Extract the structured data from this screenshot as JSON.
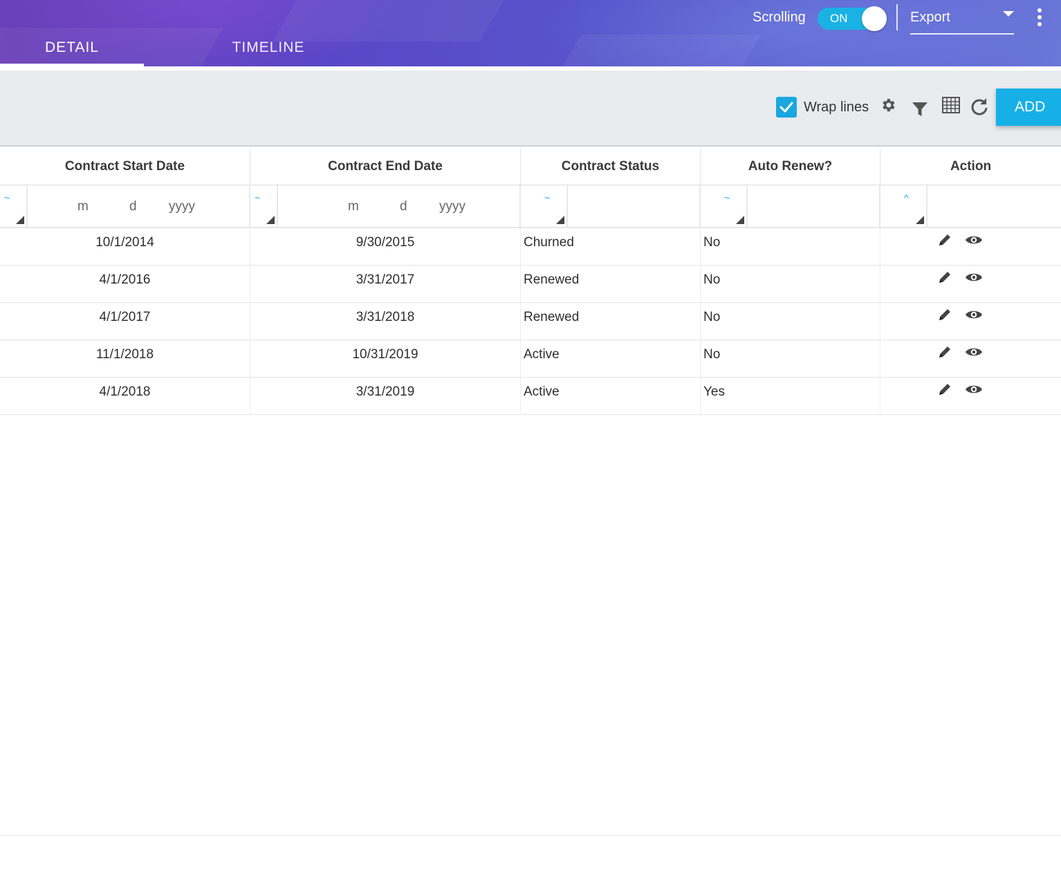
{
  "tabs": [
    {
      "label": "DETAIL",
      "active": true
    },
    {
      "label": "TIMELINE",
      "active": false
    }
  ],
  "header": {
    "scrolling_label": "Scrolling",
    "toggle_state": "ON",
    "export_label": "Export"
  },
  "toolbar": {
    "wrap_label": "Wrap lines",
    "wrap_checked": true,
    "icons": [
      "gear-icon",
      "filter-icon",
      "grid-icon",
      "refresh-icon"
    ],
    "add_label": "ADD"
  },
  "table": {
    "columns": [
      "Contract Start Date",
      "Contract End Date",
      "Contract Status",
      "Auto Renew?",
      "Action"
    ],
    "filters": [
      {
        "operator": "~",
        "placeholder": {
          "m": "m",
          "d": "d",
          "y": "yyyy"
        }
      },
      {
        "operator": "~",
        "placeholder": {
          "m": "m",
          "d": "d",
          "y": "yyyy"
        }
      },
      {
        "operator": "~"
      },
      {
        "operator": "~"
      },
      {
        "operator": "^"
      }
    ],
    "rows": [
      {
        "start": "10/1/2014",
        "end": "9/30/2015",
        "status": "Churned",
        "renew": "No"
      },
      {
        "start": "4/1/2016",
        "end": "3/31/2017",
        "status": "Renewed",
        "renew": "No"
      },
      {
        "start": "4/1/2017",
        "end": "3/31/2018",
        "status": "Renewed",
        "renew": "No"
      },
      {
        "start": "11/1/2018",
        "end": "10/31/2019",
        "status": "Active",
        "renew": "No"
      },
      {
        "start": "4/1/2018",
        "end": "3/31/2019",
        "status": "Active",
        "renew": "Yes"
      }
    ],
    "row_actions": [
      "pencil-icon",
      "eye-icon"
    ]
  },
  "colors": {
    "accent": "#1aa7e0",
    "header_gradient_start": "#6b3fb8",
    "header_gradient_end": "#6a76d8",
    "toolbar_bg": "#eaebee"
  }
}
